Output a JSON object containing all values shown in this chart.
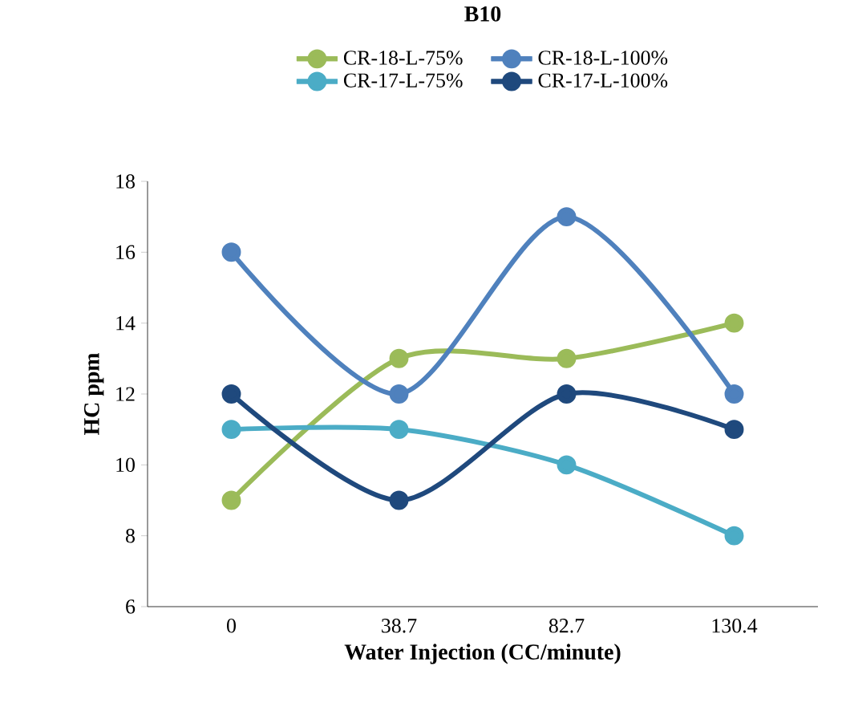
{
  "chart_data": {
    "type": "line",
    "title": "B10",
    "xlabel": "Water Injection (CC/minute)",
    "ylabel": "HC ppm",
    "categories": [
      "0",
      "38.7",
      "82.7",
      "130.4"
    ],
    "series": [
      {
        "name": "CR-18-L-75%",
        "color": "#9bbb59",
        "values": [
          9,
          13,
          13,
          14
        ]
      },
      {
        "name": "CR-18-L-100%",
        "color": "#4f81bd",
        "values": [
          16,
          12,
          17,
          12
        ]
      },
      {
        "name": "CR-17-L-75%",
        "color": "#4bacc6",
        "values": [
          11,
          11,
          10,
          8
        ]
      },
      {
        "name": "CR-17-L-100%",
        "color": "#1f497d",
        "values": [
          12,
          9,
          12,
          11
        ]
      }
    ],
    "ylim": [
      6,
      18
    ],
    "yticks": [
      6,
      8,
      10,
      12,
      14,
      16,
      18
    ],
    "legend": "top",
    "marker": "circle",
    "line_style": "solid"
  }
}
